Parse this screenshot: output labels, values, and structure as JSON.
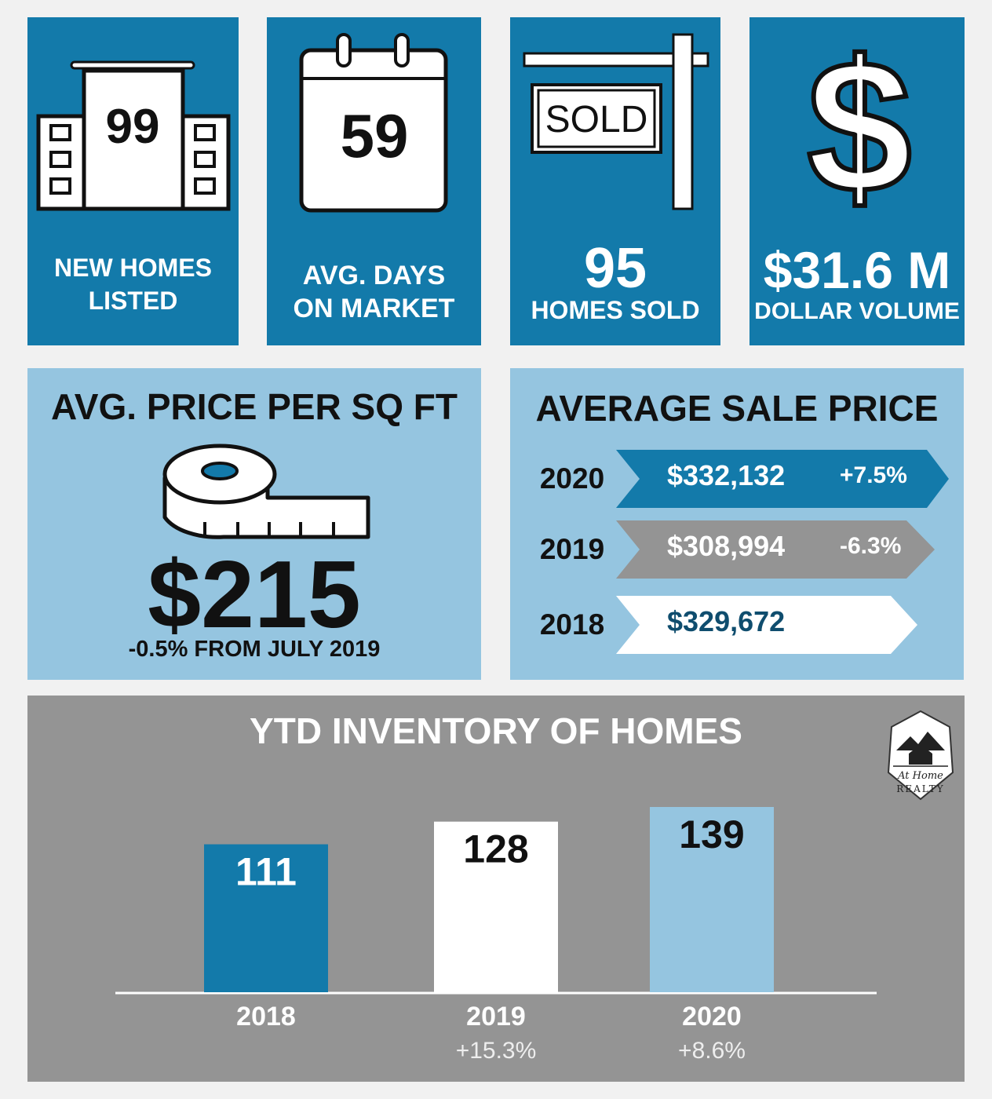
{
  "stats": {
    "new_listed": {
      "value": "99",
      "label": "NEW HOMES\nLISTED"
    },
    "days_on_market": {
      "value": "59",
      "label": "AVG. DAYS\nON MARKET"
    },
    "homes_sold": {
      "value": "95",
      "label": "HOMES SOLD",
      "sign_text": "SOLD"
    },
    "dollar_volume": {
      "value": "$31.6 M",
      "label": "DOLLAR VOLUME",
      "icon_glyph": "$"
    }
  },
  "price_per_sqft": {
    "title": "AVG. PRICE PER SQ FT",
    "value": "$215",
    "note": "-0.5% FROM JULY 2019"
  },
  "average_sale_price": {
    "title": "AVERAGE SALE PRICE",
    "rows": [
      {
        "year": "2020",
        "price": "$332,132",
        "change": "+7.5%",
        "fill": "#137aaa",
        "text": "#ffffff"
      },
      {
        "year": "2019",
        "price": "$308,994",
        "change": "-6.3%",
        "fill": "#949494",
        "text": "#ffffff"
      },
      {
        "year": "2018",
        "price": "$329,672",
        "change": "",
        "fill": "#ffffff",
        "text": "#0f4d6e"
      }
    ]
  },
  "logo": {
    "line1": "At Home",
    "line2": "REALTY"
  },
  "chart_data": {
    "type": "bar",
    "title": "YTD INVENTORY OF HOMES",
    "categories": [
      "2018",
      "2019",
      "2020"
    ],
    "values": [
      111,
      128,
      139
    ],
    "value_labels": [
      "111",
      "128",
      "139"
    ],
    "changes": [
      "",
      "+15.3%",
      "+8.6%"
    ],
    "colors": [
      "#137aaa",
      "#ffffff",
      "#95c5e0"
    ],
    "label_colors": [
      "#ffffff",
      "#111111",
      "#111111"
    ],
    "ylim": [
      0,
      139
    ]
  }
}
